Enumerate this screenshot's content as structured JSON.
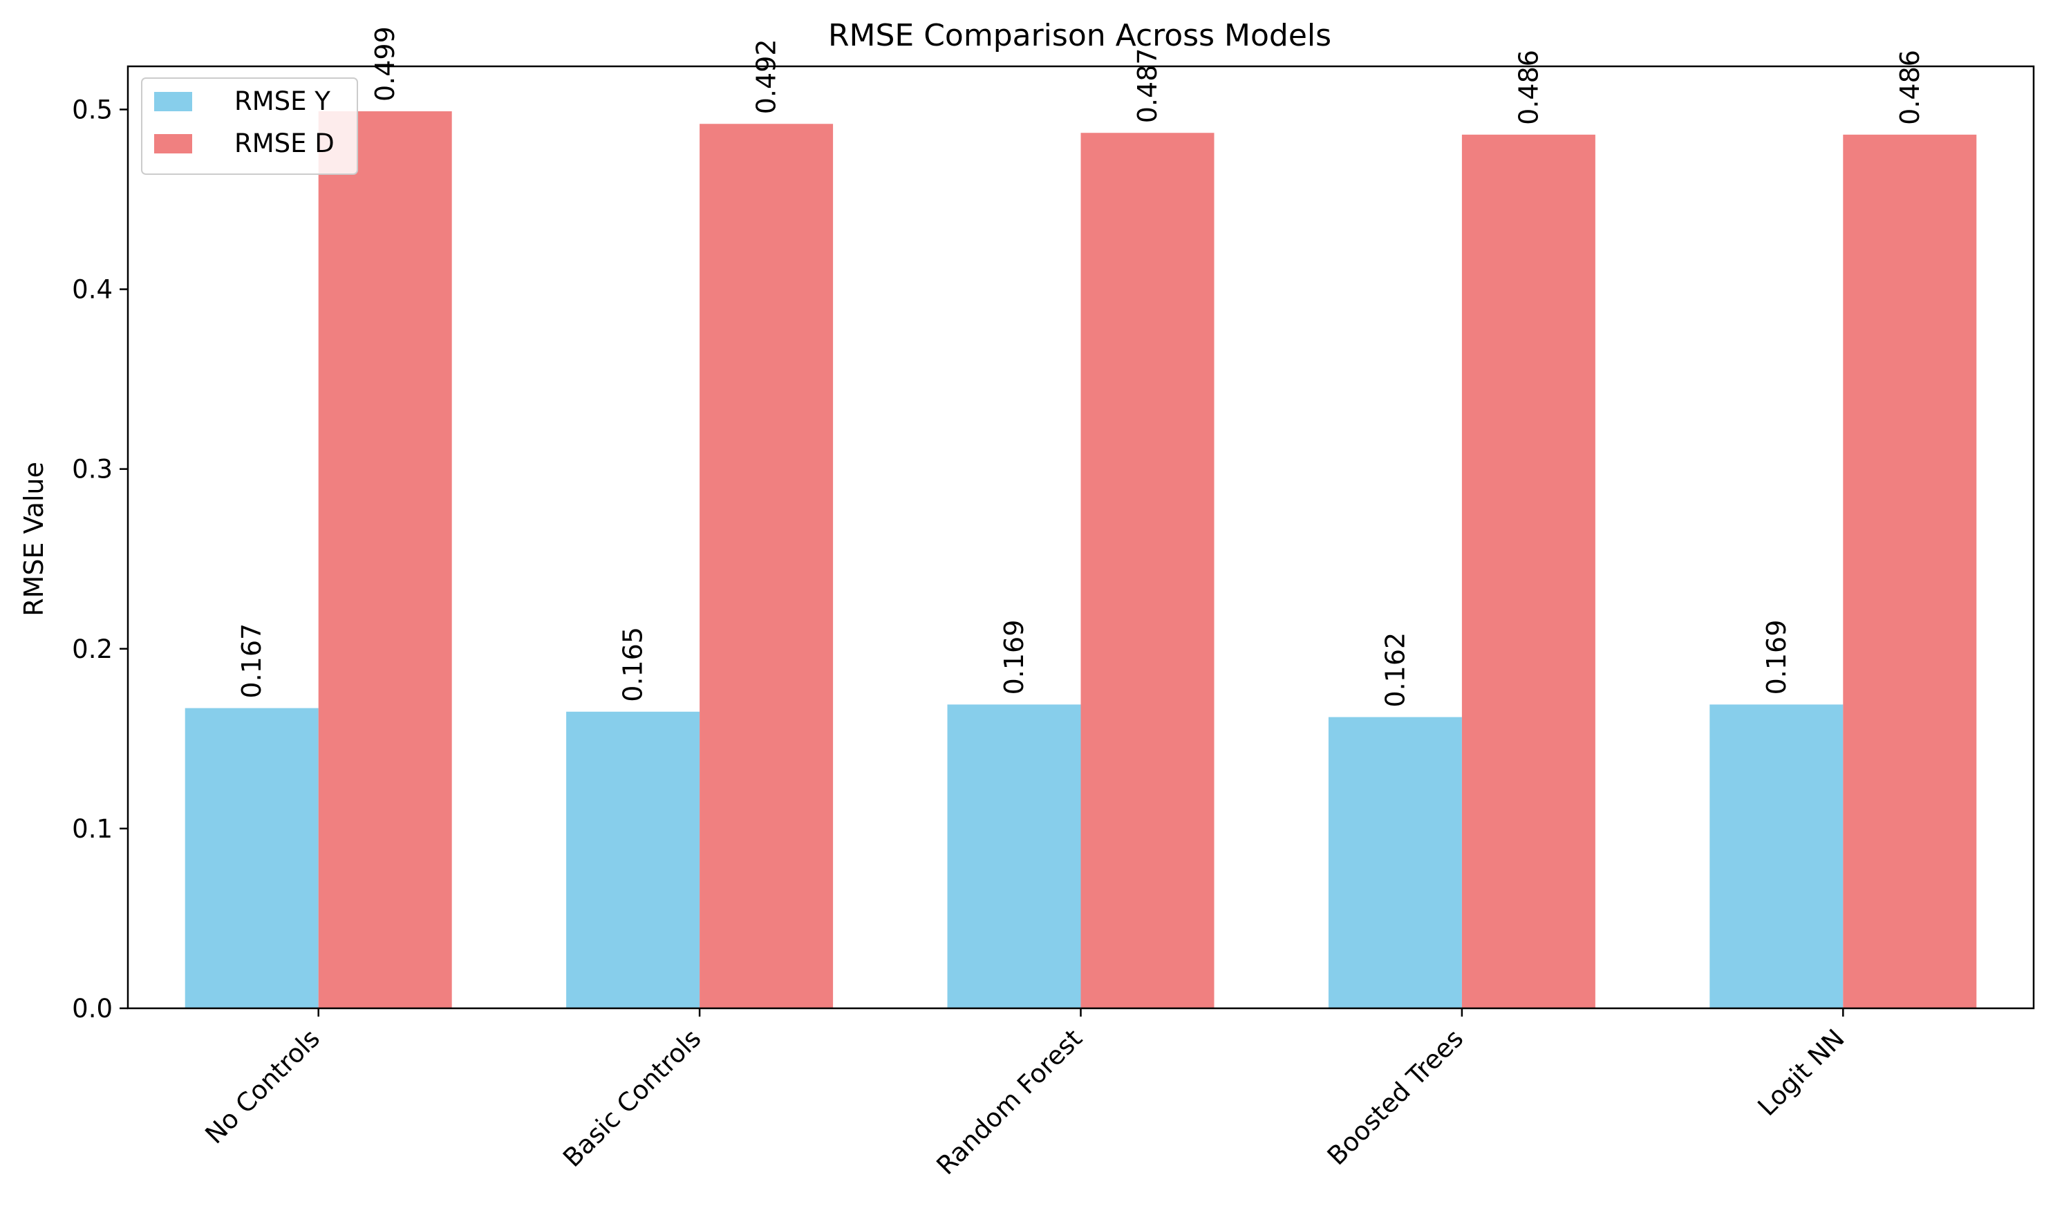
{
  "chart_data": {
    "type": "bar",
    "title": "RMSE Comparison Across Models",
    "xlabel": "",
    "ylabel": "RMSE Value",
    "categories": [
      "No Controls",
      "Basic Controls",
      "Random Forest",
      "Boosted Trees",
      "Logit NN"
    ],
    "series": [
      {
        "name": "RMSE Y",
        "color": "#87ceeb",
        "values": [
          0.167,
          0.165,
          0.169,
          0.162,
          0.169
        ],
        "value_labels": [
          "0.167",
          "0.165",
          "0.169",
          "0.162",
          "0.169"
        ]
      },
      {
        "name": "RMSE D",
        "color": "#f08080",
        "values": [
          0.499,
          0.492,
          0.487,
          0.486,
          0.486
        ],
        "value_labels": [
          "0.499",
          "0.492",
          "0.487",
          "0.486",
          "0.486"
        ]
      }
    ],
    "ylim": [
      0,
      0.524
    ],
    "yticks": [
      0.0,
      0.1,
      0.2,
      0.3,
      0.4,
      0.5
    ],
    "ytick_labels": [
      "0.0",
      "0.1",
      "0.2",
      "0.3",
      "0.4",
      "0.5"
    ],
    "grid": false,
    "legend_position": "top-left"
  }
}
